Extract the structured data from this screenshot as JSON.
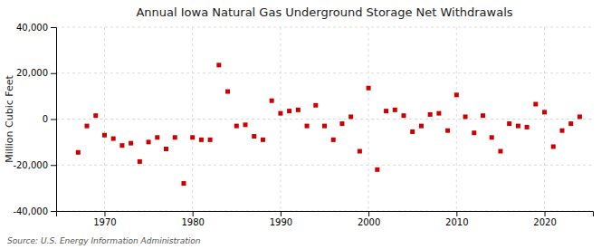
{
  "chart_data": {
    "type": "scatter",
    "title": "Annual Iowa Natural Gas Underground Storage Net Withdrawals",
    "ylabel": "Million Cubic Feet",
    "annotations": [
      "Source: U.S. Energy Information Administration"
    ],
    "color": "#cc0000",
    "marker": "square",
    "grid": true,
    "x": [
      1967,
      1968,
      1969,
      1970,
      1971,
      1972,
      1973,
      1974,
      1975,
      1976,
      1977,
      1978,
      1979,
      1980,
      1981,
      1982,
      1983,
      1984,
      1985,
      1986,
      1987,
      1988,
      1989,
      1990,
      1991,
      1992,
      1993,
      1994,
      1995,
      1996,
      1997,
      1998,
      1999,
      2000,
      2001,
      2002,
      2003,
      2004,
      2005,
      2006,
      2007,
      2008,
      2009,
      2010,
      2011,
      2012,
      2013,
      2014,
      2015,
      2016,
      2017,
      2018,
      2019,
      2020,
      2021,
      2022,
      2023,
      2024
    ],
    "values": [
      -14500,
      -3000,
      1500,
      -7000,
      -8500,
      -11500,
      -10500,
      -18500,
      -10000,
      -8000,
      -13000,
      -8000,
      -28000,
      -8000,
      -9000,
      -9000,
      23500,
      12000,
      -3000,
      -2500,
      -7500,
      -9000,
      8000,
      2500,
      3500,
      4000,
      -3000,
      6000,
      -3000,
      -9000,
      -2000,
      1000,
      -14000,
      13500,
      -22000,
      3500,
      4000,
      1500,
      -5500,
      -3000,
      2000,
      2500,
      -5000,
      10500,
      1000,
      -6000,
      1500,
      -8000,
      -14000,
      -2000,
      -3000,
      -3500,
      6500,
      3000,
      -12000,
      -5000,
      -2000,
      1000
    ],
    "xlim": [
      1964.5,
      2025.5
    ],
    "xticks": [
      1970,
      1980,
      1990,
      2000,
      2010,
      2020
    ],
    "ylim": [
      -40000,
      40000
    ],
    "yticks": [
      {
        "value": -40000,
        "label": "-40,000"
      },
      {
        "value": -20000,
        "label": "-20,000"
      },
      0,
      {
        "value": 20000,
        "label": "20,000"
      },
      {
        "value": 40000,
        "label": "40,000"
      }
    ]
  }
}
